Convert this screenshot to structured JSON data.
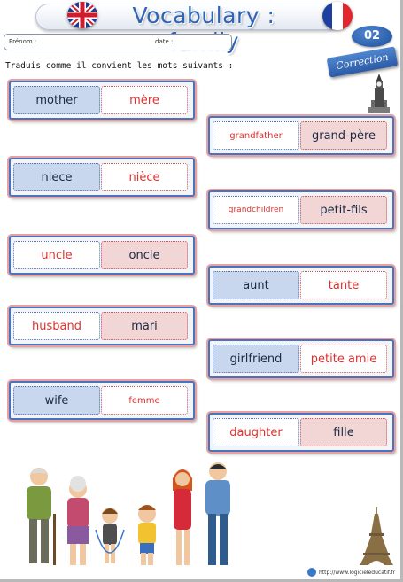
{
  "header": {
    "title": "Vocabulary : family",
    "badge_number": "02",
    "correction_label": "Correction"
  },
  "info": {
    "first_name_label": "Prénom :",
    "date_label": "date :"
  },
  "instruction": "Traduis comme il convient les mots suivants :",
  "left_cards": [
    {
      "en": "mother",
      "fr": "mère",
      "given": "en"
    },
    {
      "en": "niece",
      "fr": "nièce",
      "given": "en"
    },
    {
      "en": "uncle",
      "fr": "oncle",
      "given": "fr"
    },
    {
      "en": "husband",
      "fr": "mari",
      "given": "fr"
    },
    {
      "en": "wife",
      "fr": "femme",
      "given": "en"
    }
  ],
  "right_cards": [
    {
      "en": "grandfather",
      "fr": "grand-père",
      "given": "fr"
    },
    {
      "en": "grandchildren",
      "fr": "petit-fils",
      "given": "fr"
    },
    {
      "en": "aunt",
      "fr": "tante",
      "given": "en"
    },
    {
      "en": "girlfriend",
      "fr": "petite amie",
      "given": "en"
    },
    {
      "en": "daughter",
      "fr": "fille",
      "given": "fr"
    }
  ],
  "footer": {
    "url": "http://www.logicieleducatif.fr"
  },
  "colors": {
    "title_blue": "#2f63b4",
    "answer_red": "#e0302c",
    "card_border_blue": "#4a73bd",
    "given_en_fill": "#c9d7ee",
    "given_fr_fill": "#f2d6d6"
  },
  "icons": [
    "uk-flag-icon",
    "france-flag-icon",
    "big-ben-icon",
    "eiffel-tower-icon",
    "family-illustration",
    "globe-icon"
  ]
}
